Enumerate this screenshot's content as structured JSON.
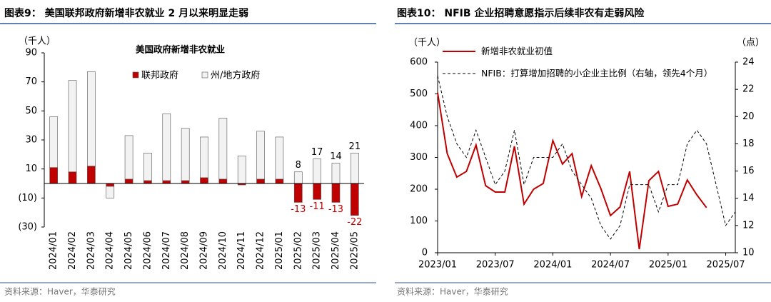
{
  "chart_data": [
    {
      "type": "bar",
      "stacked": true,
      "title": "图表9：  美国联邦政府新增非农就业 2 月以来明显走弱",
      "subtitle": "美国政府新增非农就业",
      "y_label": "（千人）",
      "source": "资料来源：Haver，华泰研究",
      "categories": [
        "2024/01",
        "2024/02",
        "2024/03",
        "2024/04",
        "2024/05",
        "2024/06",
        "2024/07",
        "2024/08",
        "2024/09",
        "2024/10",
        "2024/11",
        "2024/12",
        "2025/01",
        "2025/02",
        "2025/03",
        "2025/04",
        "2025/05"
      ],
      "series": [
        {
          "name": "联邦政府",
          "color": "#c00000",
          "label_color": "#c00000",
          "values": [
            11,
            8,
            12,
            -2,
            3,
            2,
            2,
            2,
            4,
            3,
            -1,
            3,
            3,
            -13,
            -11,
            -13,
            -22
          ],
          "value_labels": [
            null,
            null,
            null,
            null,
            null,
            null,
            null,
            null,
            null,
            null,
            null,
            null,
            null,
            "-13",
            "-11",
            "-13",
            "-22"
          ]
        },
        {
          "name": "州/地方政府",
          "color": "#f2f2f2",
          "label_color": "#000000",
          "values": [
            35,
            63,
            65,
            -8,
            30,
            19,
            46,
            36,
            28,
            42,
            19,
            33,
            29,
            8,
            17,
            14,
            21
          ],
          "value_labels": [
            null,
            null,
            null,
            null,
            null,
            null,
            null,
            null,
            null,
            null,
            null,
            null,
            null,
            "8",
            "17",
            "14",
            "21"
          ]
        }
      ],
      "ylim": [
        -30,
        90
      ],
      "yticks": [
        {
          "value": -30,
          "label": "(30)"
        },
        {
          "value": -10,
          "label": "(10)"
        },
        10,
        30,
        50,
        70,
        90
      ]
    },
    {
      "type": "line",
      "title": "图表10：  NFIB 企业招聘意愿指示后续非农有走弱风险",
      "y_label": "（千人）",
      "y2_label": "（点）",
      "source": "资料来源：Haver，华泰研究",
      "x": [
        "2023/01",
        "2023/02",
        "2023/03",
        "2023/04",
        "2023/05",
        "2023/06",
        "2023/07",
        "2023/08",
        "2023/09",
        "2023/10",
        "2023/11",
        "2023/12",
        "2024/01",
        "2024/02",
        "2024/03",
        "2024/04",
        "2024/05",
        "2024/06",
        "2024/07",
        "2024/08",
        "2024/09",
        "2024/10",
        "2024/11",
        "2024/12",
        "2025/01",
        "2025/02",
        "2025/03",
        "2025/04",
        "2025/05",
        "2025/06",
        "2025/07",
        "2025/08"
      ],
      "xlim": [
        "2023/01",
        "2025/08"
      ],
      "xticks": [
        "2023/01",
        "2023/07",
        "2024/01",
        "2024/07",
        "2025/01",
        "2025/07"
      ],
      "series": [
        {
          "name": "新增非农就业初值",
          "color": "#c00000",
          "dash": false,
          "values": [
            504,
            312,
            238,
            256,
            339,
            211,
            191,
            191,
            335,
            153,
            200,
            218,
            353,
            279,
            312,
            177,
            274,
            202,
            117,
            144,
            256,
            11,
            227,
            256,
            146,
            153,
            229,
            182,
            142,
            null,
            null,
            null
          ]
        },
        {
          "name": "NFIB：打算增加招聘的小企业主比例（右轴，领先4个月）",
          "color": "#000000",
          "dash": true,
          "axis": "y2",
          "values": [
            23,
            20,
            18,
            17,
            19,
            17,
            15,
            16,
            19,
            15,
            17,
            17,
            17,
            18,
            16,
            15,
            14,
            12,
            11,
            12,
            15,
            15,
            15,
            13,
            15,
            15,
            18,
            19,
            18,
            15,
            12,
            13
          ]
        }
      ],
      "ylim": [
        0,
        600
      ],
      "yticks": [
        0,
        100,
        200,
        300,
        400,
        500,
        600
      ],
      "y2lim": [
        10,
        24
      ],
      "y2ticks": [
        10,
        12,
        14,
        16,
        18,
        20,
        22,
        24
      ]
    }
  ]
}
